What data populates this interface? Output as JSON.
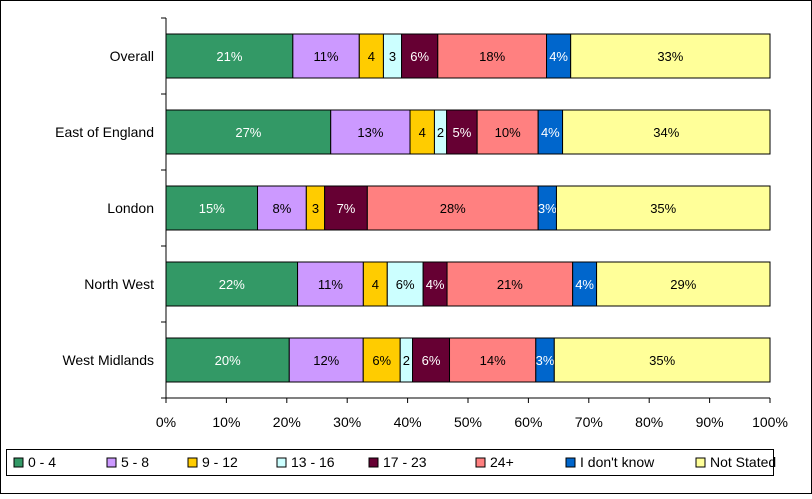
{
  "chart_data": {
    "type": "bar",
    "orientation": "horizontal",
    "stacked": true,
    "title": "",
    "xlabel": "",
    "ylabel": "",
    "xlim": [
      0,
      100
    ],
    "x_ticks": [
      "0%",
      "10%",
      "20%",
      "30%",
      "40%",
      "50%",
      "60%",
      "70%",
      "80%",
      "90%",
      "100%"
    ],
    "grid": false,
    "legend_position": "bottom",
    "categories": [
      "Overall",
      "East of England",
      "London",
      "North West",
      "West Midlands"
    ],
    "series": [
      {
        "name": "0 - 4",
        "color": "#339966",
        "values": [
          21,
          27,
          15,
          22,
          20
        ],
        "labels": [
          "21%",
          "27%",
          "15%",
          "22%",
          "20%"
        ]
      },
      {
        "name": "5 - 8",
        "color": "#cc99ff",
        "values": [
          11,
          13,
          8,
          11,
          12
        ],
        "labels": [
          "11%",
          "13%",
          "8%",
          "11%",
          "12%"
        ]
      },
      {
        "name": "9 - 12",
        "color": "#ffcc00",
        "values": [
          4,
          4,
          3,
          4,
          6
        ],
        "labels": [
          "4",
          "4",
          "3",
          "4",
          "6%"
        ]
      },
      {
        "name": "13 - 16",
        "color": "#ccffff",
        "values": [
          3,
          2,
          0,
          6,
          2
        ],
        "labels": [
          "3",
          "2",
          "",
          "6%",
          "2"
        ]
      },
      {
        "name": "17 - 23",
        "color": "#660033",
        "values": [
          6,
          5,
          7,
          4,
          6
        ],
        "labels": [
          "6%",
          "5%",
          "7%",
          "4%",
          "6%"
        ]
      },
      {
        "name": "24+",
        "color": "#ff8080",
        "values": [
          18,
          10,
          28,
          21,
          14
        ],
        "labels": [
          "18%",
          "10%",
          "28%",
          "21%",
          "14%"
        ]
      },
      {
        "name": "I don't know",
        "color": "#0066cc",
        "values": [
          4,
          4,
          3,
          4,
          3
        ],
        "labels": [
          "4%",
          "4%",
          "3%",
          "4%",
          "3%"
        ]
      },
      {
        "name": "Not Stated",
        "color": "#ffff99",
        "values": [
          33,
          34,
          35,
          29,
          35
        ],
        "labels": [
          "33%",
          "34%",
          "35%",
          "29%",
          "35%"
        ]
      }
    ]
  }
}
